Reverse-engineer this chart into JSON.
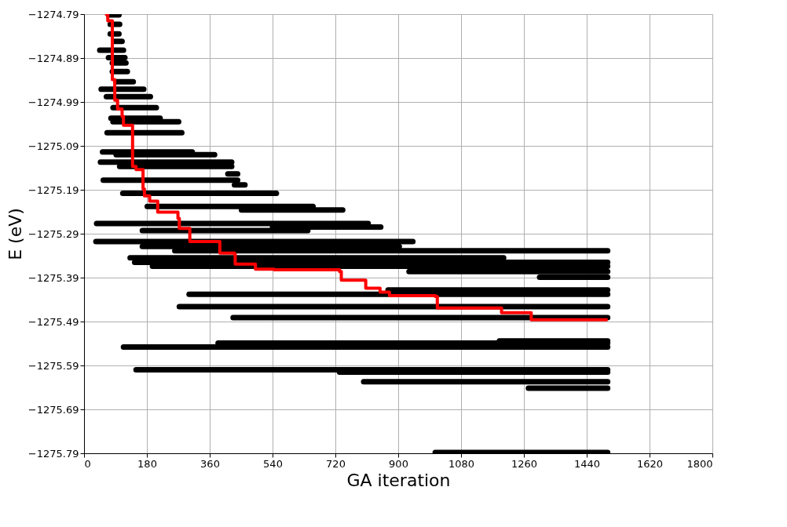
{
  "chart_data": {
    "type": "line",
    "xlabel": "GA iteration",
    "ylabel": "E (eV)",
    "xlim": [
      0,
      1800
    ],
    "xticks": [
      0,
      180,
      360,
      540,
      720,
      900,
      1080,
      1260,
      1440,
      1620,
      1800
    ],
    "ylim": [
      -1275.79,
      -1274.79
    ],
    "yticks": [
      -1275.79,
      -1275.69,
      -1275.59,
      -1275.49,
      -1275.39,
      -1275.29,
      -1275.19,
      -1275.09,
      -1274.99,
      -1274.89,
      -1274.79
    ],
    "grid": true,
    "series": [
      {
        "color": "#000000",
        "x": [
          70,
          100
        ],
        "values": [
          -1274.792,
          -1274.792
        ]
      },
      {
        "color": "#000000",
        "x": [
          75,
          102
        ],
        "values": [
          -1274.813,
          -1274.813
        ]
      },
      {
        "color": "#000000",
        "x": [
          75,
          100
        ],
        "values": [
          -1274.835,
          -1274.835
        ]
      },
      {
        "color": "#000000",
        "x": [
          85,
          109
        ],
        "values": [
          -1274.852,
          -1274.852
        ]
      },
      {
        "color": "#000000",
        "x": [
          45,
          113
        ],
        "values": [
          -1274.872,
          -1274.872
        ]
      },
      {
        "color": "#000000",
        "x": [
          70,
          117
        ],
        "values": [
          -1274.889,
          -1274.889
        ]
      },
      {
        "color": "#000000",
        "x": [
          81,
          120
        ],
        "values": [
          -1274.901,
          -1274.901
        ]
      },
      {
        "color": "#000000",
        "x": [
          81,
          124
        ],
        "values": [
          -1274.921,
          -1274.921
        ]
      },
      {
        "color": "#000000",
        "x": [
          92,
          141
        ],
        "values": [
          -1274.944,
          -1274.944
        ]
      },
      {
        "color": "#000000",
        "x": [
          49,
          171
        ],
        "values": [
          -1274.961,
          -1274.961
        ]
      },
      {
        "color": "#000000",
        "x": [
          64,
          190
        ],
        "values": [
          -1274.978,
          -1274.978
        ]
      },
      {
        "color": "#000000",
        "x": [
          83,
          207
        ],
        "values": [
          -1275.003,
          -1275.003
        ]
      },
      {
        "color": "#000000",
        "x": [
          77,
          218
        ],
        "values": [
          -1275.027,
          -1275.027
        ]
      },
      {
        "color": "#000000",
        "x": [
          83,
          271
        ],
        "values": [
          -1275.035,
          -1275.035
        ]
      },
      {
        "color": "#000000",
        "x": [
          66,
          280
        ],
        "values": [
          -1275.06,
          -1275.06
        ]
      },
      {
        "color": "#000000",
        "x": [
          53,
          310
        ],
        "values": [
          -1275.104,
          -1275.104
        ]
      },
      {
        "color": "#000000",
        "x": [
          92,
          374
        ],
        "values": [
          -1275.11,
          -1275.11
        ]
      },
      {
        "color": "#000000",
        "x": [
          47,
          423
        ],
        "values": [
          -1275.127,
          -1275.127
        ]
      },
      {
        "color": "#000000",
        "x": [
          102,
          423
        ],
        "values": [
          -1275.137,
          -1275.137
        ]
      },
      {
        "color": "#000000",
        "x": [
          412,
          440
        ],
        "values": [
          -1275.154,
          -1275.154
        ]
      },
      {
        "color": "#000000",
        "x": [
          55,
          440
        ],
        "values": [
          -1275.168,
          -1275.168
        ]
      },
      {
        "color": "#000000",
        "x": [
          431,
          461
        ],
        "values": [
          -1275.179,
          -1275.179
        ]
      },
      {
        "color": "#000000",
        "x": [
          111,
          551
        ],
        "values": [
          -1275.198,
          -1275.198
        ]
      },
      {
        "color": "#000000",
        "x": [
          181,
          656
        ],
        "values": [
          -1275.228,
          -1275.228
        ]
      },
      {
        "color": "#000000",
        "x": [
          451,
          741
        ],
        "values": [
          -1275.236,
          -1275.236
        ]
      },
      {
        "color": "#000000",
        "x": [
          36,
          814
        ],
        "values": [
          -1275.267,
          -1275.267
        ]
      },
      {
        "color": "#000000",
        "x": [
          540,
          850
        ],
        "values": [
          -1275.275,
          -1275.275
        ]
      },
      {
        "color": "#000000",
        "x": [
          167,
          641
        ],
        "values": [
          -1275.283,
          -1275.283
        ]
      },
      {
        "color": "#000000",
        "x": [
          34,
          942
        ],
        "values": [
          -1275.308,
          -1275.308
        ]
      },
      {
        "color": "#000000",
        "x": [
          167,
          903
        ],
        "values": [
          -1275.319,
          -1275.319
        ]
      },
      {
        "color": "#000000",
        "x": [
          260,
          1500
        ],
        "values": [
          -1275.329,
          -1275.329
        ]
      },
      {
        "color": "#000000",
        "x": [
          132,
          1202
        ],
        "values": [
          -1275.345,
          -1275.345
        ]
      },
      {
        "color": "#000000",
        "x": [
          145,
          1500
        ],
        "values": [
          -1275.355,
          -1275.355
        ]
      },
      {
        "color": "#000000",
        "x": [
          196,
          1500
        ],
        "values": [
          -1275.364,
          -1275.364
        ]
      },
      {
        "color": "#000000",
        "x": [
          931,
          1500
        ],
        "values": [
          -1275.376,
          -1275.376
        ]
      },
      {
        "color": "#000000",
        "x": [
          1305,
          1500
        ],
        "values": [
          -1275.389,
          -1275.389
        ]
      },
      {
        "color": "#000000",
        "x": [
          871,
          1500
        ],
        "values": [
          -1275.418,
          -1275.418
        ]
      },
      {
        "color": "#000000",
        "x": [
          301,
          1500
        ],
        "values": [
          -1275.428,
          -1275.428
        ]
      },
      {
        "color": "#000000",
        "x": [
          273,
          1500
        ],
        "values": [
          -1275.456,
          -1275.456
        ]
      },
      {
        "color": "#000000",
        "x": [
          427,
          1500
        ],
        "values": [
          -1275.481,
          -1275.481
        ]
      },
      {
        "color": "#000000",
        "x": [
          1190,
          1500
        ],
        "values": [
          -1275.534,
          -1275.534
        ]
      },
      {
        "color": "#000000",
        "x": [
          384,
          1500
        ],
        "values": [
          -1275.539,
          -1275.539
        ]
      },
      {
        "color": "#000000",
        "x": [
          113,
          1500
        ],
        "values": [
          -1275.548,
          -1275.548
        ]
      },
      {
        "color": "#000000",
        "x": [
          149,
          1500
        ],
        "values": [
          -1275.6,
          -1275.6
        ]
      },
      {
        "color": "#000000",
        "x": [
          732,
          1500
        ],
        "values": [
          -1275.605,
          -1275.605
        ]
      },
      {
        "color": "#000000",
        "x": [
          801,
          1500
        ],
        "values": [
          -1275.627,
          -1275.627
        ]
      },
      {
        "color": "#000000",
        "x": [
          1273,
          1500
        ],
        "values": [
          -1275.642,
          -1275.642
        ]
      },
      {
        "color": "#000000",
        "x": [
          1006,
          1500
        ],
        "values": [
          -1275.788,
          -1275.788
        ]
      },
      {
        "type": "step",
        "color": "#ff0000",
        "x": [
          60,
          68,
          81,
          88,
          96,
          109,
          113,
          139,
          149,
          169,
          173,
          186,
          188,
          203,
          211,
          269,
          273,
          299,
          303,
          367,
          389,
          431,
          433,
          491,
          544,
          732,
          737,
          807,
          839,
          848,
          875,
          1006,
          1012,
          1191,
          1196,
          1277,
          1281,
          1500
        ],
        "values": [
          -1274.79,
          -1274.805,
          -1274.939,
          -1274.986,
          -1275.006,
          -1275.023,
          -1275.043,
          -1275.137,
          -1275.144,
          -1275.188,
          -1275.204,
          -1275.204,
          -1275.216,
          -1275.216,
          -1275.241,
          -1275.255,
          -1275.278,
          -1275.278,
          -1275.308,
          -1275.308,
          -1275.334,
          -1275.337,
          -1275.359,
          -1275.371,
          -1275.372,
          -1275.376,
          -1275.396,
          -1275.414,
          -1275.414,
          -1275.423,
          -1275.431,
          -1275.433,
          -1275.459,
          -1275.459,
          -1275.47,
          -1275.47,
          -1275.486,
          -1275.486
        ]
      }
    ]
  }
}
